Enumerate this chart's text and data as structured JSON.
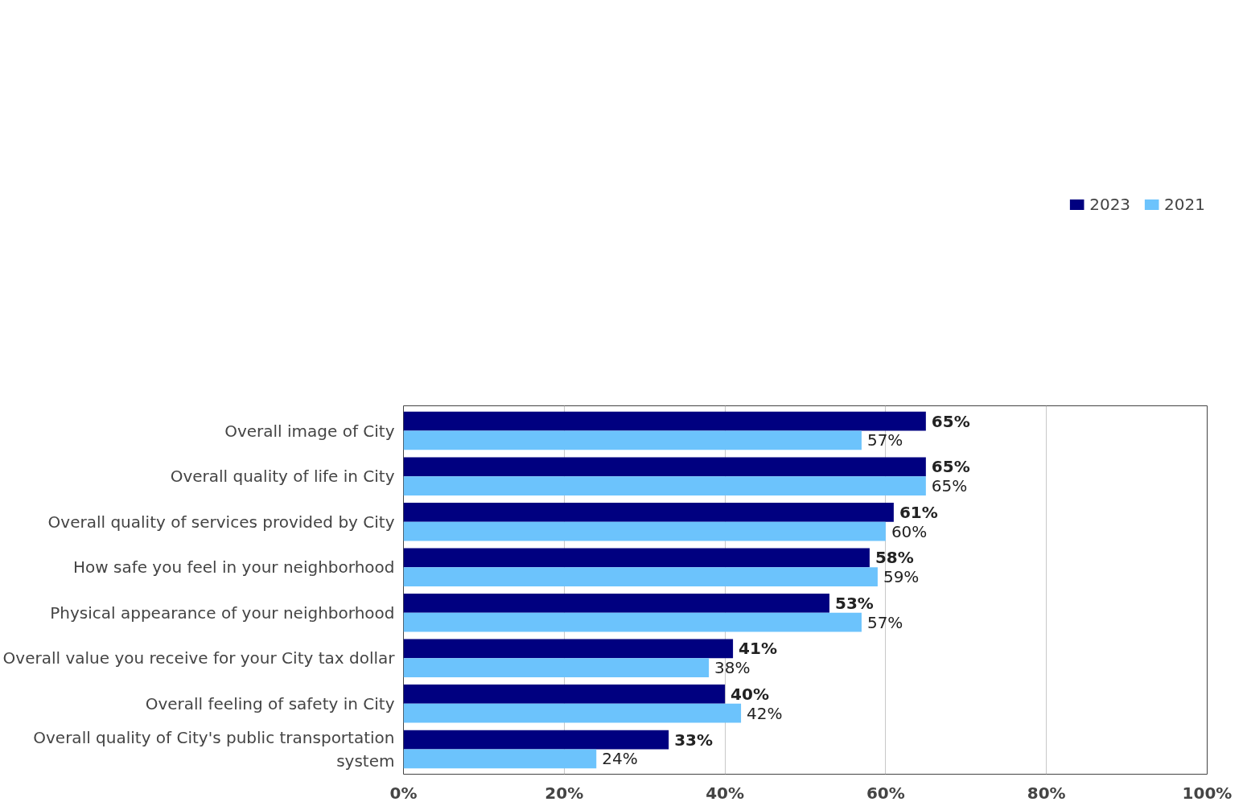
{
  "chart_data": {
    "type": "bar",
    "orientation": "horizontal",
    "categories": [
      "Overall image of City",
      "Overall quality of life in City",
      "Overall quality of services provided by City",
      "How safe you feel in your neighborhood",
      "Physical appearance of your neighborhood",
      "Overall value you receive for your City tax dollar",
      "Overall feeling of safety in City",
      "Overall quality of City's public transportation system"
    ],
    "series": [
      {
        "name": "2023",
        "color": "#000080",
        "values": [
          65,
          65,
          61,
          58,
          53,
          41,
          40,
          33
        ],
        "value_labels": [
          "65%",
          "65%",
          "61%",
          "58%",
          "53%",
          "41%",
          "40%",
          "33%"
        ]
      },
      {
        "name": "2021",
        "color": "#6cc3fc",
        "values": [
          57,
          65,
          60,
          59,
          57,
          38,
          42,
          24
        ],
        "value_labels": [
          "57%",
          "65%",
          "60%",
          "59%",
          "57%",
          "38%",
          "42%",
          "24%"
        ]
      }
    ],
    "xlim": [
      0,
      100
    ],
    "xticks": [
      {
        "value": 0,
        "label": "0%"
      },
      {
        "value": 20,
        "label": "20%"
      },
      {
        "value": 40,
        "label": "40%"
      },
      {
        "value": 60,
        "label": "60%"
      },
      {
        "value": 80,
        "label": "80%"
      },
      {
        "value": 100,
        "label": "100%"
      }
    ],
    "grid": "x",
    "legend": "top right"
  }
}
